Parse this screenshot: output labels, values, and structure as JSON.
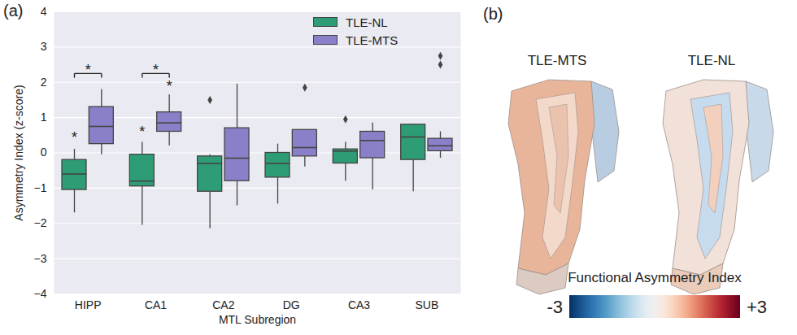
{
  "chart_data": [
    {
      "type": "box",
      "panel_label": "(a)",
      "ylabel": "Asymmetry Index (z-score)",
      "xlabel": "MTL Subregion",
      "categories": [
        "HIPP",
        "CA1",
        "CA2",
        "DG",
        "CA3",
        "SUB"
      ],
      "ylim": [
        -4,
        4
      ],
      "yticks": [
        -4,
        -3,
        -2,
        -1,
        0,
        1,
        2,
        3,
        4
      ],
      "grid": true,
      "legend": "upper right",
      "series": [
        {
          "name": "TLE-NL",
          "color": "#2e9c74",
          "values": [
            {
              "min": -1.7,
              "q1": -1.05,
              "median": -0.6,
              "q3": -0.2,
              "max": 0.1,
              "outliers": []
            },
            {
              "min": -2.05,
              "q1": -0.95,
              "median": -0.8,
              "q3": -0.05,
              "max": 0.3,
              "outliers": []
            },
            {
              "min": -2.15,
              "q1": -1.1,
              "median": -0.3,
              "q3": -0.1,
              "max": -0.05,
              "outliers": [
                1.5
              ]
            },
            {
              "min": -1.45,
              "q1": -0.7,
              "median": -0.3,
              "q3": 0.0,
              "max": 0.25,
              "outliers": []
            },
            {
              "min": -0.8,
              "q1": -0.3,
              "median": 0.05,
              "q3": 0.1,
              "max": 0.3,
              "outliers": [
                0.95
              ]
            },
            {
              "min": -1.1,
              "q1": -0.2,
              "median": 0.45,
              "q3": 0.8,
              "max": 0.8,
              "outliers": []
            }
          ]
        },
        {
          "name": "TLE-MTS",
          "color": "#8a80c9",
          "values": [
            {
              "min": -0.05,
              "q1": 0.25,
              "median": 0.75,
              "q3": 1.3,
              "max": 1.8,
              "outliers": []
            },
            {
              "min": 0.2,
              "q1": 0.6,
              "median": 0.85,
              "q3": 1.15,
              "max": 1.65,
              "outliers": []
            },
            {
              "min": -1.5,
              "q1": -0.8,
              "median": -0.15,
              "q3": 0.7,
              "max": 1.95,
              "outliers": []
            },
            {
              "min": -0.4,
              "q1": -0.1,
              "median": 0.15,
              "q3": 0.65,
              "max": 0.65,
              "outliers": [
                1.85
              ]
            },
            {
              "min": -1.05,
              "q1": -0.15,
              "median": 0.35,
              "q3": 0.6,
              "max": 0.85,
              "outliers": []
            },
            {
              "min": -0.15,
              "q1": 0.05,
              "median": 0.2,
              "q3": 0.4,
              "max": 0.6,
              "outliers": [
                2.75,
                2.5
              ]
            }
          ]
        }
      ],
      "annotations": [
        {
          "category": "HIPP",
          "series": "TLE-NL",
          "text": "*",
          "y": 0.3
        },
        {
          "category": "CA1",
          "series": "TLE-NL",
          "text": "*",
          "y": 0.45
        },
        {
          "category": "CA1",
          "series": "TLE-MTS",
          "text": "*",
          "y": 1.75
        }
      ],
      "brackets": [
        {
          "category": "HIPP",
          "text": "*",
          "y": 2.25
        },
        {
          "category": "CA1",
          "text": "*",
          "y": 2.25
        }
      ]
    },
    {
      "type": "colorbar",
      "panel_label": "(b)",
      "labels": [
        "TLE-MTS",
        "TLE-NL"
      ],
      "title": "Functional Asymmetry Index",
      "zlim": [
        -3,
        3
      ],
      "zticks": [
        -3,
        {
          "value": 3,
          "label": "+3"
        }
      ]
    }
  ]
}
